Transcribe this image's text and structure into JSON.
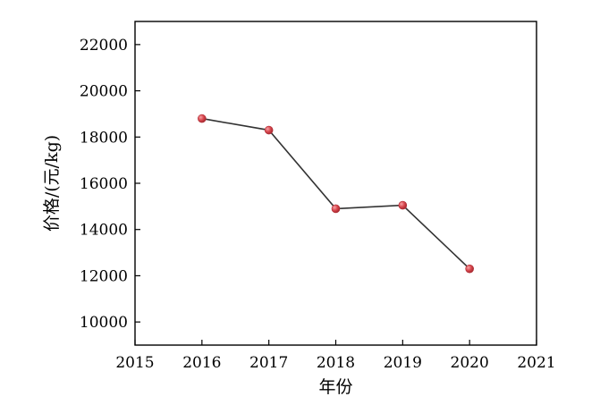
{
  "chart_data": {
    "type": "line",
    "xlabel": "年份",
    "ylabel": "价格/(元/kg)",
    "xlim": [
      2015,
      2021
    ],
    "ylim": [
      9000,
      23000
    ],
    "xticks": [
      2015,
      2016,
      2017,
      2018,
      2019,
      2020,
      2021
    ],
    "xtick_labels": [
      "2015",
      "2016",
      "2017",
      "2018",
      "2019",
      "2020",
      "2021"
    ],
    "yticks": [
      10000,
      12000,
      14000,
      16000,
      18000,
      20000,
      22000
    ],
    "ytick_labels": [
      "10000",
      "12000",
      "14000",
      "16000",
      "18000",
      "20000",
      "22000"
    ],
    "grid": false,
    "series": [
      {
        "x": [
          2016,
          2017,
          2018,
          2019,
          2020
        ],
        "y": [
          18800,
          18300,
          14900,
          15050,
          12300
        ],
        "line_color": "#333333",
        "marker_color": "#d9484f"
      }
    ]
  }
}
